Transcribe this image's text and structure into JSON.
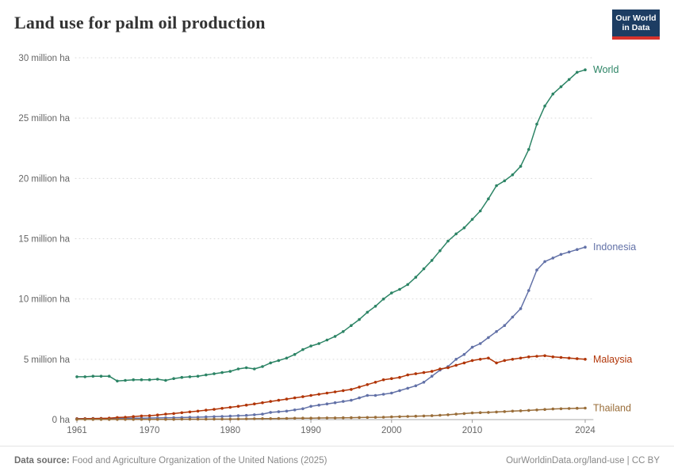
{
  "header": {
    "title": "Land use for palm oil production",
    "logo": {
      "line1": "Our World",
      "line2": "in Data",
      "bg_color": "#1d3d63",
      "accent_color": "#d7332c"
    }
  },
  "footer": {
    "source_label": "Data source:",
    "source_text": " Food and Agriculture Organization of the United Nations (2025)",
    "credit": "OurWorldinData.org/land-use | CC BY"
  },
  "chart_data": {
    "type": "line",
    "title": "Land use for palm oil production",
    "unit": "million ha",
    "x_start": 1961,
    "x_end": 2024,
    "x_ticks": [
      1961,
      1970,
      1980,
      1990,
      2000,
      2010,
      2024
    ],
    "y_ticks": [
      0,
      5,
      10,
      15,
      20,
      25,
      30
    ],
    "y_tick_labels": [
      "0 ha",
      "5 million ha",
      "10 million ha",
      "15 million ha",
      "20 million ha",
      "25 million ha",
      "30 million ha"
    ],
    "ylim": [
      0,
      30
    ],
    "grid": "dotted-horizontal",
    "legend_position": "right-end-labels",
    "series": [
      {
        "name": "World",
        "color": "#2C8465",
        "values": [
          3.55,
          3.55,
          3.6,
          3.6,
          3.6,
          3.2,
          3.25,
          3.3,
          3.3,
          3.3,
          3.35,
          3.25,
          3.4,
          3.5,
          3.55,
          3.6,
          3.7,
          3.8,
          3.9,
          4.0,
          4.2,
          4.3,
          4.2,
          4.4,
          4.7,
          4.9,
          5.1,
          5.4,
          5.8,
          6.1,
          6.3,
          6.6,
          6.9,
          7.3,
          7.8,
          8.3,
          8.9,
          9.4,
          10.0,
          10.5,
          10.8,
          11.2,
          11.8,
          12.5,
          13.2,
          14.0,
          14.8,
          15.4,
          15.9,
          16.6,
          17.3,
          18.3,
          19.4,
          19.8,
          20.3,
          21.0,
          22.4,
          24.5,
          26.0,
          27.0,
          27.6,
          28.2,
          28.8,
          29.0
        ]
      },
      {
        "name": "Indonesia",
        "color": "#6271A7",
        "values": [
          0.08,
          0.08,
          0.09,
          0.09,
          0.1,
          0.1,
          0.1,
          0.11,
          0.12,
          0.13,
          0.14,
          0.15,
          0.16,
          0.17,
          0.19,
          0.2,
          0.22,
          0.24,
          0.26,
          0.29,
          0.32,
          0.35,
          0.4,
          0.45,
          0.6,
          0.65,
          0.7,
          0.8,
          0.9,
          1.1,
          1.2,
          1.3,
          1.4,
          1.5,
          1.6,
          1.8,
          2.0,
          2.0,
          2.1,
          2.2,
          2.4,
          2.6,
          2.8,
          3.1,
          3.6,
          4.1,
          4.4,
          5.0,
          5.4,
          6.0,
          6.3,
          6.8,
          7.3,
          7.8,
          8.5,
          9.2,
          10.7,
          12.4,
          13.1,
          13.4,
          13.7,
          13.9,
          14.1,
          14.3
        ]
      },
      {
        "name": "Malaysia",
        "color": "#B13507",
        "values": [
          0.06,
          0.07,
          0.08,
          0.1,
          0.12,
          0.17,
          0.2,
          0.25,
          0.3,
          0.32,
          0.38,
          0.45,
          0.5,
          0.57,
          0.64,
          0.7,
          0.78,
          0.85,
          0.93,
          1.02,
          1.1,
          1.2,
          1.3,
          1.4,
          1.5,
          1.6,
          1.7,
          1.8,
          1.9,
          2.0,
          2.1,
          2.2,
          2.3,
          2.4,
          2.5,
          2.7,
          2.9,
          3.1,
          3.3,
          3.4,
          3.5,
          3.7,
          3.8,
          3.9,
          4.0,
          4.2,
          4.3,
          4.5,
          4.7,
          4.9,
          5.0,
          5.1,
          4.7,
          4.9,
          5.0,
          5.1,
          5.2,
          5.25,
          5.3,
          5.2,
          5.15,
          5.1,
          5.05,
          5.0
        ]
      },
      {
        "name": "Thailand",
        "color": "#996D39",
        "values": [
          0.01,
          0.01,
          0.01,
          0.01,
          0.01,
          0.01,
          0.01,
          0.01,
          0.02,
          0.02,
          0.02,
          0.02,
          0.02,
          0.03,
          0.03,
          0.03,
          0.03,
          0.04,
          0.04,
          0.04,
          0.05,
          0.06,
          0.07,
          0.08,
          0.08,
          0.09,
          0.1,
          0.11,
          0.12,
          0.12,
          0.13,
          0.14,
          0.14,
          0.15,
          0.16,
          0.17,
          0.18,
          0.19,
          0.2,
          0.22,
          0.24,
          0.26,
          0.28,
          0.3,
          0.32,
          0.36,
          0.4,
          0.45,
          0.5,
          0.55,
          0.58,
          0.6,
          0.63,
          0.66,
          0.7,
          0.73,
          0.76,
          0.8,
          0.84,
          0.88,
          0.9,
          0.92,
          0.94,
          0.95
        ]
      }
    ]
  }
}
